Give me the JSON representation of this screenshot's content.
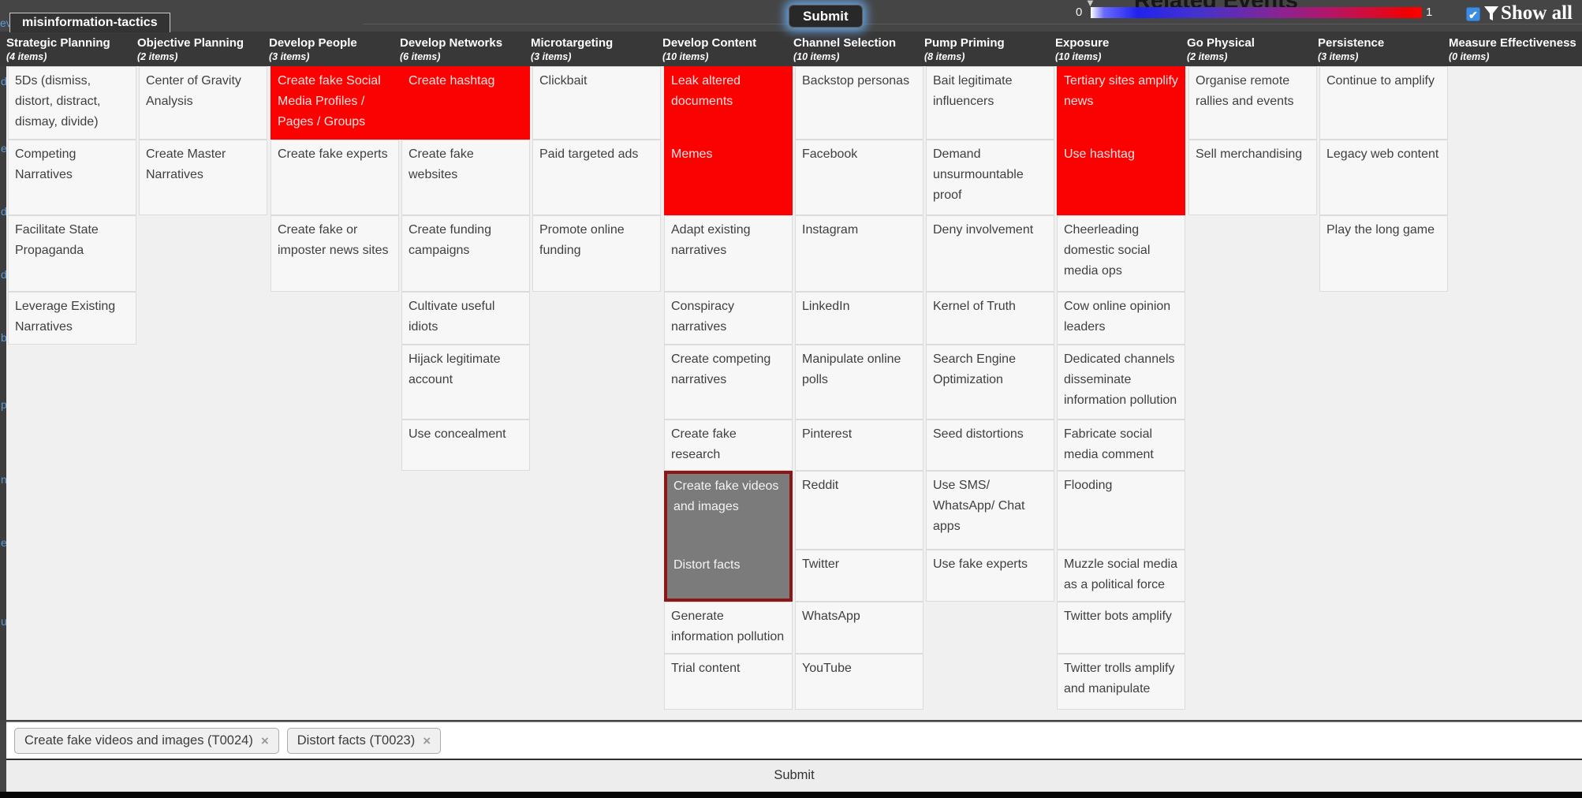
{
  "tab_label": "misinformation-tactics",
  "top_bar": {
    "submit_label": "Submit",
    "related_title": "Related Events",
    "dropdown_arrow": "▼",
    "legend": {
      "min_label": "0",
      "max_label": "1"
    },
    "show_all": {
      "checked": true,
      "check_glyph": "✔",
      "label": "Show all"
    }
  },
  "background_fragments": [
    "ev",
    "d",
    "e",
    "d",
    "d",
    "b",
    "p",
    "n",
    "e",
    "u"
  ],
  "matrix": {
    "selected_block": {
      "column": 6,
      "rows": [
        7,
        8
      ]
    },
    "columns": [
      {
        "name": "Strategic Planning",
        "count": "(4 items)",
        "cells": [
          {
            "row": 1,
            "label": "5Ds (dismiss, distort, distract, dismay, divide)",
            "state": "normal"
          },
          {
            "row": 2,
            "label": "Competing Narratives",
            "state": "normal"
          },
          {
            "row": 3,
            "label": "Facilitate State Propaganda",
            "state": "normal"
          },
          {
            "row": 4,
            "label": "Leverage Existing Narratives",
            "state": "normal"
          }
        ]
      },
      {
        "name": "Objective Planning",
        "count": "(2 items)",
        "cells": [
          {
            "row": 1,
            "label": "Center of Gravity Analysis",
            "state": "normal"
          },
          {
            "row": 2,
            "label": "Create Master Narratives",
            "state": "normal"
          }
        ]
      },
      {
        "name": "Develop People",
        "count": "(3 items)",
        "cells": [
          {
            "row": 1,
            "label": "Create fake Social Media Profiles / Pages / Groups",
            "state": "highlighted"
          },
          {
            "row": 2,
            "label": "Create fake experts",
            "state": "normal"
          },
          {
            "row": 3,
            "label": "Create fake or imposter news sites",
            "state": "normal"
          }
        ]
      },
      {
        "name": "Develop Networks",
        "count": "(6 items)",
        "cells": [
          {
            "row": 1,
            "label": "Create hashtag",
            "state": "highlighted"
          },
          {
            "row": 2,
            "label": "Create fake websites",
            "state": "normal"
          },
          {
            "row": 3,
            "label": "Create funding campaigns",
            "state": "normal"
          },
          {
            "row": 4,
            "label": "Cultivate useful idiots",
            "state": "normal"
          },
          {
            "row": 5,
            "label": "Hijack legitimate account",
            "state": "normal"
          },
          {
            "row": 6,
            "label": "Use concealment",
            "state": "normal"
          }
        ]
      },
      {
        "name": "Microtargeting",
        "count": "(3 items)",
        "cells": [
          {
            "row": 1,
            "label": "Clickbait",
            "state": "normal"
          },
          {
            "row": 2,
            "label": "Paid targeted ads",
            "state": "normal"
          },
          {
            "row": 3,
            "label": "Promote online funding",
            "state": "normal"
          }
        ]
      },
      {
        "name": "Develop Content",
        "count": "(10 items)",
        "cells": [
          {
            "row": 1,
            "label": "Leak altered documents",
            "state": "highlighted"
          },
          {
            "row": 2,
            "label": "Memes",
            "state": "highlighted"
          },
          {
            "row": 3,
            "label": "Adapt existing narratives",
            "state": "normal"
          },
          {
            "row": 4,
            "label": "Conspiracy narratives",
            "state": "normal"
          },
          {
            "row": 5,
            "label": "Create competing narratives",
            "state": "normal"
          },
          {
            "row": 6,
            "label": "Create fake research",
            "state": "normal"
          },
          {
            "row": 7,
            "label": "Create fake videos and images",
            "state": "selected"
          },
          {
            "row": 8,
            "label": "Distort facts",
            "state": "selected"
          },
          {
            "row": 9,
            "label": "Generate information pollution",
            "state": "normal"
          },
          {
            "row": 10,
            "label": "Trial content",
            "state": "normal"
          }
        ]
      },
      {
        "name": "Channel Selection",
        "count": "(10 items)",
        "cells": [
          {
            "row": 1,
            "label": "Backstop personas",
            "state": "normal"
          },
          {
            "row": 2,
            "label": "Facebook",
            "state": "normal"
          },
          {
            "row": 3,
            "label": "Instagram",
            "state": "normal"
          },
          {
            "row": 4,
            "label": "LinkedIn",
            "state": "normal"
          },
          {
            "row": 5,
            "label": "Manipulate online polls",
            "state": "normal"
          },
          {
            "row": 6,
            "label": "Pinterest",
            "state": "normal"
          },
          {
            "row": 7,
            "label": "Reddit",
            "state": "normal"
          },
          {
            "row": 8,
            "label": "Twitter",
            "state": "normal"
          },
          {
            "row": 9,
            "label": "WhatsApp",
            "state": "normal"
          },
          {
            "row": 10,
            "label": "YouTube",
            "state": "normal"
          }
        ]
      },
      {
        "name": "Pump Priming",
        "count": "(8 items)",
        "cells": [
          {
            "row": 1,
            "label": "Bait legitimate influencers",
            "state": "normal"
          },
          {
            "row": 2,
            "label": "Demand unsurmountable proof",
            "state": "normal"
          },
          {
            "row": 3,
            "label": "Deny involvement",
            "state": "normal"
          },
          {
            "row": 4,
            "label": "Kernel of Truth",
            "state": "normal"
          },
          {
            "row": 5,
            "label": "Search Engine Optimization",
            "state": "normal"
          },
          {
            "row": 6,
            "label": "Seed distortions",
            "state": "normal"
          },
          {
            "row": 7,
            "label": "Use SMS/ WhatsApp/ Chat apps",
            "state": "normal"
          },
          {
            "row": 8,
            "label": "Use fake experts",
            "state": "normal"
          }
        ]
      },
      {
        "name": "Exposure",
        "count": "(10 items)",
        "cells": [
          {
            "row": 1,
            "label": "Tertiary sites amplify news",
            "state": "highlighted"
          },
          {
            "row": 2,
            "label": "Use hashtag",
            "state": "highlighted"
          },
          {
            "row": 3,
            "label": "Cheerleading domestic social media ops",
            "state": "normal"
          },
          {
            "row": 4,
            "label": "Cow online opinion leaders",
            "state": "normal"
          },
          {
            "row": 5,
            "label": "Dedicated channels disseminate information pollution",
            "state": "normal"
          },
          {
            "row": 6,
            "label": "Fabricate social media comment",
            "state": "normal"
          },
          {
            "row": 7,
            "label": "Flooding",
            "state": "normal"
          },
          {
            "row": 8,
            "label": "Muzzle social media as a political force",
            "state": "normal"
          },
          {
            "row": 9,
            "label": "Twitter bots amplify",
            "state": "normal"
          },
          {
            "row": 10,
            "label": "Twitter trolls amplify and manipulate",
            "state": "normal"
          }
        ]
      },
      {
        "name": "Go Physical",
        "count": "(2 items)",
        "cells": [
          {
            "row": 1,
            "label": "Organise remote rallies and events",
            "state": "normal"
          },
          {
            "row": 2,
            "label": "Sell merchandising",
            "state": "normal"
          }
        ]
      },
      {
        "name": "Persistence",
        "count": "(3 items)",
        "cells": [
          {
            "row": 1,
            "label": "Continue to amplify",
            "state": "normal"
          },
          {
            "row": 2,
            "label": "Legacy web content",
            "state": "normal"
          },
          {
            "row": 3,
            "label": "Play the long game",
            "state": "normal"
          }
        ]
      },
      {
        "name": "Measure Effectiveness",
        "count": "(0 items)",
        "cells": []
      }
    ]
  },
  "footer": {
    "tags": [
      {
        "label": "Create fake videos and images (T0024)",
        "close": "×"
      },
      {
        "label": "Distort facts (T0023)",
        "close": "×"
      }
    ],
    "submit_label": "Submit"
  },
  "colors": {
    "highlight": "#fa0202",
    "selected_bg": "#7b7b7b",
    "selected_border": "#8b1717",
    "accent_blue": "#3c8ce0"
  }
}
